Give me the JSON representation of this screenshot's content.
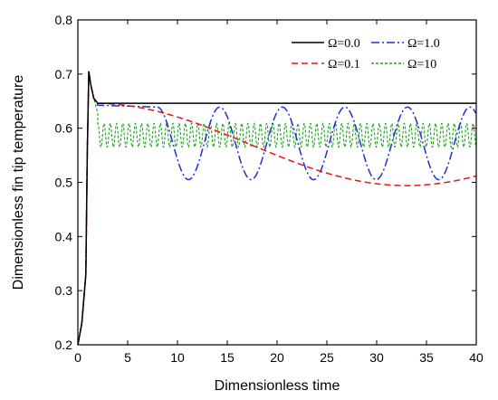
{
  "chart_data": {
    "type": "line",
    "title": "",
    "xlabel": "Dimensionless time",
    "ylabel": "Dimensionless fin tip temperature",
    "xlim": [
      0,
      40
    ],
    "ylim": [
      0.2,
      0.8
    ],
    "xticks": [
      0,
      5,
      10,
      15,
      20,
      25,
      30,
      35,
      40
    ],
    "yticks": [
      0.2,
      0.3,
      0.4,
      0.5,
      0.6,
      0.7,
      0.8
    ],
    "xtick_labels": [
      "0",
      "5",
      "10",
      "15",
      "20",
      "25",
      "30",
      "35",
      "40"
    ],
    "ytick_labels": [
      "0.2",
      "0.3",
      "0.4",
      "0.5",
      "0.6",
      "0.7",
      "0.8"
    ],
    "grid": false,
    "legend_position": "top-right",
    "transient": {
      "x": [
        0,
        0.4,
        0.8,
        0.95,
        1.1,
        1.3,
        1.6,
        2.0
      ],
      "y": [
        0.2,
        0.24,
        0.33,
        0.56,
        0.705,
        0.68,
        0.655,
        0.646
      ]
    },
    "series": [
      {
        "name": "Ω=0.0",
        "color": "#000000",
        "dash": "solid",
        "model": "steady",
        "steady": 0.646
      },
      {
        "name": "Ω=1.0",
        "color": "#1f2fd6",
        "dash": "dashdot",
        "model": "cos",
        "mean": 0.572,
        "amplitude": 0.067,
        "period": 6.28,
        "peak_at": 7.97
      },
      {
        "name": "Ω=0.1",
        "color": "#e8141a",
        "dash": "dash",
        "model": "cos",
        "mean": 0.57,
        "amplitude": 0.076,
        "period": 62.8,
        "peak_at": 1.6
      },
      {
        "name": "Ω=10",
        "color": "#1ea21e",
        "dash": "short-dash",
        "model": "cos",
        "mean": 0.587,
        "amplitude": 0.022,
        "period": 0.628,
        "peak_at": 2.0
      }
    ],
    "legend": {
      "rows": [
        [
          "Ω=0.0",
          "Ω=1.0"
        ],
        [
          "Ω=0.1",
          "Ω=10"
        ]
      ]
    }
  }
}
